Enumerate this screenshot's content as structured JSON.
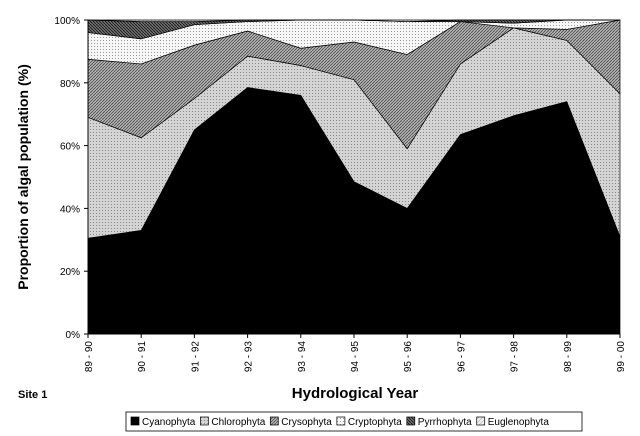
{
  "chart_data": {
    "type": "area",
    "stacked": true,
    "percent": true,
    "note": "Site 1",
    "xlabel": "Hydrological Year",
    "ylabel": "Proportion of algal population (%)",
    "ylim": [
      0,
      100
    ],
    "yticks": [
      "0%",
      "20%",
      "40%",
      "60%",
      "80%",
      "100%"
    ],
    "grid": false,
    "legend_position": "bottom",
    "categories": [
      "89 - 90",
      "90 - 91",
      "91 - 92",
      "92 - 93",
      "93 - 94",
      "94 - 95",
      "95 - 96",
      "96 - 97",
      "97 - 98",
      "98 - 99",
      "99 - 00"
    ],
    "series": [
      {
        "name": "Cyanophyta",
        "color": "#000000",
        "pattern": "solid",
        "values": [
          30.5,
          33,
          65,
          78.5,
          76,
          48.5,
          40,
          63.5,
          69.5,
          74,
          31
        ]
      },
      {
        "name": "Chlorophyta",
        "color": "#c8c8c8",
        "pattern": "light-dots",
        "values": [
          38.5,
          29.5,
          10,
          10,
          9.5,
          32.5,
          19,
          22.5,
          28,
          19.5,
          45.5
        ]
      },
      {
        "name": "Crysophyta",
        "color": "#9a9a9a",
        "pattern": "diagonal",
        "values": [
          18.5,
          23.5,
          17,
          8,
          5.5,
          12,
          30,
          13.5,
          0,
          3.5,
          23.5
        ]
      },
      {
        "name": "Cryptophyta",
        "color": "#f0f0f0",
        "pattern": "fine-dots",
        "values": [
          8.5,
          8,
          6.5,
          3,
          9,
          7,
          10.5,
          0,
          1.5,
          4,
          0
        ]
      },
      {
        "name": "Pyrrhophyta",
        "color": "#505050",
        "pattern": "dark-hatch",
        "values": [
          4,
          5.5,
          1,
          0.5,
          0,
          0,
          0,
          0.5,
          1,
          0.5,
          0
        ]
      },
      {
        "name": "Euglenophyta",
        "color": "#e6e6e6",
        "pattern": "light-hatch",
        "values": [
          0,
          0.5,
          0.5,
          0,
          0,
          0,
          0.5,
          0,
          0,
          0,
          0
        ]
      }
    ]
  }
}
